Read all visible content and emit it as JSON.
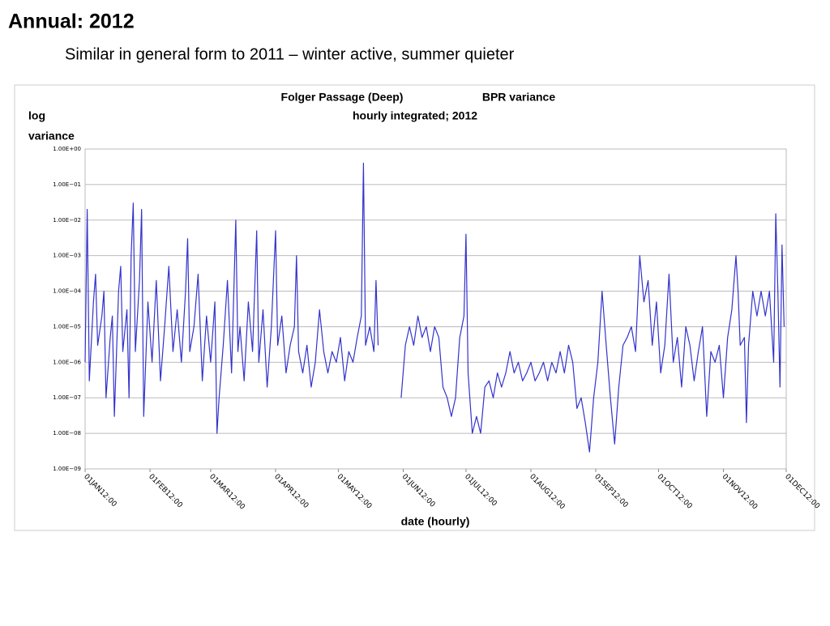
{
  "slide": {
    "title": "Annual: 2012",
    "subtitle": "Similar in general form to 2011 – winter active, summer quieter"
  },
  "chart_data": {
    "type": "line",
    "title": "Folger Passage (Deep)",
    "title_right": "BPR variance",
    "subtitle": "hourly integrated; 2012",
    "ylabel": [
      "log",
      "variance"
    ],
    "xlabel": "date (hourly)",
    "color": "#3333cc",
    "grid": true,
    "log_y": true,
    "xlim": [
      0,
      335
    ],
    "xticks": [
      {
        "value": 0,
        "label": "01JAN12:00"
      },
      {
        "value": 31,
        "label": "01FEB12:00"
      },
      {
        "value": 60,
        "label": "01MAR12:00"
      },
      {
        "value": 91,
        "label": "01APR12:00"
      },
      {
        "value": 121,
        "label": "01MAY12:00"
      },
      {
        "value": 152,
        "label": "01JUN12:00"
      },
      {
        "value": 182,
        "label": "01JUL12:00"
      },
      {
        "value": 213,
        "label": "01AUG12:00"
      },
      {
        "value": 244,
        "label": "01SEP12:00"
      },
      {
        "value": 274,
        "label": "01OCT12:00"
      },
      {
        "value": 305,
        "label": "01NOV12:00"
      },
      {
        "value": 335,
        "label": "01DEC12:00"
      }
    ],
    "ylim": [
      1e-09,
      1
    ],
    "yticks": [
      {
        "value": 1,
        "label": "1.00E+00"
      },
      {
        "value": 0.1,
        "label": "1.00E−01"
      },
      {
        "value": 0.01,
        "label": "1.00E−02"
      },
      {
        "value": 0.001,
        "label": "1.00E−03"
      },
      {
        "value": 0.0001,
        "label": "1.00E−04"
      },
      {
        "value": 1e-05,
        "label": "1.00E−05"
      },
      {
        "value": 1e-06,
        "label": "1.00E−06"
      },
      {
        "value": 1e-07,
        "label": "1.00E−07"
      },
      {
        "value": 1e-08,
        "label": "1.00E−08"
      },
      {
        "value": 1e-09,
        "label": "1.00E−09"
      }
    ],
    "x": [
      0,
      1,
      2,
      4,
      5,
      6,
      8,
      9,
      10,
      12,
      13,
      14,
      16,
      17,
      18,
      20,
      21,
      22,
      23,
      24,
      26,
      27,
      28,
      30,
      32,
      34,
      36,
      38,
      40,
      42,
      44,
      46,
      48,
      49,
      50,
      52,
      54,
      56,
      58,
      60,
      62,
      63,
      64,
      66,
      68,
      70,
      72,
      73,
      74,
      76,
      78,
      80,
      82,
      83,
      85,
      87,
      89,
      91,
      92,
      94,
      96,
      98,
      100,
      101,
      102,
      104,
      106,
      108,
      110,
      112,
      114,
      116,
      118,
      120,
      122,
      124,
      126,
      128,
      130,
      132,
      133,
      134,
      136,
      138,
      139,
      140,
      141,
      151,
      153,
      155,
      157,
      159,
      161,
      163,
      165,
      167,
      169,
      171,
      173,
      175,
      177,
      179,
      181,
      182,
      183,
      185,
      187,
      189,
      191,
      193,
      195,
      197,
      199,
      201,
      203,
      205,
      207,
      209,
      211,
      213,
      215,
      217,
      219,
      221,
      223,
      225,
      227,
      229,
      231,
      233,
      235,
      237,
      239,
      241,
      243,
      245,
      247,
      249,
      251,
      253,
      255,
      257,
      259,
      261,
      263,
      265,
      267,
      269,
      271,
      273,
      275,
      277,
      279,
      281,
      283,
      285,
      287,
      289,
      291,
      293,
      295,
      297,
      299,
      301,
      303,
      305,
      307,
      309,
      311,
      312,
      313,
      315,
      316,
      317,
      319,
      321,
      323,
      325,
      327,
      329,
      330,
      331,
      332,
      333,
      334
    ],
    "values": [
      1e-06,
      0.02,
      3e-07,
      5e-05,
      0.0003,
      3e-06,
      2e-05,
      0.0001,
      1e-07,
      5e-06,
      2e-05,
      3e-08,
      0.0001,
      0.0005,
      2e-06,
      3e-05,
      1e-07,
      0.001,
      0.03,
      2e-06,
      0.0002,
      0.02,
      3e-08,
      5e-05,
      1e-06,
      0.0002,
      3e-07,
      1e-05,
      0.0005,
      2e-06,
      3e-05,
      1e-06,
      0.0001,
      0.003,
      2e-06,
      1e-05,
      0.0003,
      3e-07,
      2e-05,
      1e-06,
      5e-05,
      1e-08,
      1e-07,
      3e-06,
      0.0002,
      5e-07,
      0.01,
      2e-06,
      1e-05,
      3e-07,
      5e-05,
      2e-06,
      0.005,
      1e-06,
      3e-05,
      2e-07,
      1e-05,
      0.005,
      3e-06,
      2e-05,
      5e-07,
      3e-06,
      1e-05,
      0.001,
      2e-06,
      5e-07,
      3e-06,
      2e-07,
      1e-06,
      3e-05,
      2e-06,
      5e-07,
      2e-06,
      1e-06,
      5e-06,
      3e-07,
      2e-06,
      1e-06,
      5e-06,
      2e-05,
      0.4,
      3e-06,
      1e-05,
      2e-06,
      0.0002,
      3e-06,
      null,
      1e-07,
      3e-06,
      1e-05,
      3e-06,
      2e-05,
      5e-06,
      1e-05,
      2e-06,
      1e-05,
      5e-06,
      2e-07,
      1e-07,
      3e-08,
      1e-07,
      5e-06,
      2e-05,
      0.004,
      5e-07,
      1e-08,
      3e-08,
      1e-08,
      2e-07,
      3e-07,
      1e-07,
      5e-07,
      2e-07,
      5e-07,
      2e-06,
      5e-07,
      1e-06,
      3e-07,
      5e-07,
      1e-06,
      3e-07,
      5e-07,
      1e-06,
      3e-07,
      1e-06,
      5e-07,
      2e-06,
      5e-07,
      3e-06,
      1e-06,
      5e-08,
      1e-07,
      2e-08,
      3e-09,
      1e-07,
      1e-06,
      0.0001,
      3e-06,
      1e-07,
      5e-09,
      2e-07,
      3e-06,
      5e-06,
      1e-05,
      2e-06,
      0.001,
      5e-05,
      0.0002,
      3e-06,
      5e-05,
      5e-07,
      3e-06,
      0.0003,
      1e-06,
      5e-06,
      2e-07,
      1e-05,
      3e-06,
      3e-07,
      2e-06,
      1e-05,
      3e-08,
      2e-06,
      1e-06,
      3e-06,
      1e-07,
      5e-06,
      3e-05,
      0.001,
      0.0001,
      3e-06,
      5e-06,
      2e-08,
      3e-06,
      0.0001,
      2e-05,
      0.0001,
      2e-05,
      0.0001,
      1e-06,
      0.015,
      0.0001,
      2e-07,
      0.002,
      1e-05
    ]
  }
}
